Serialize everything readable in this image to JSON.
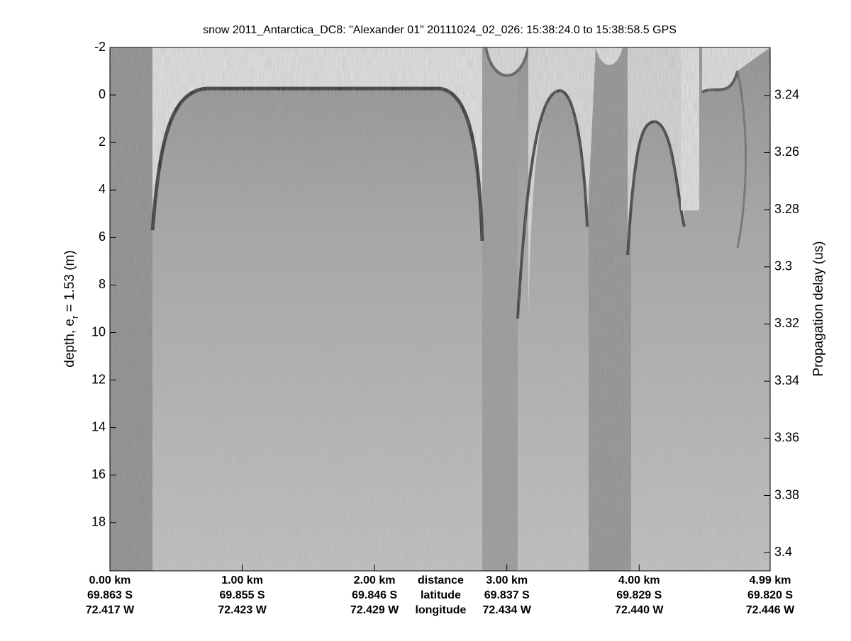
{
  "chart_data": {
    "type": "echogram",
    "title": "snow 2011_Antarctica_DC8: \"Alexander 01\"  20111024_02_026: 15:38:24.0 to 15:38:58.5 GPS",
    "ylabel": [
      "depth, e",
      "r",
      " = 1.53 (m)"
    ],
    "y2label": "Propagation delay (us)",
    "ylim": [
      -2,
      20.03
    ],
    "yticks": [
      -2,
      0,
      2,
      4,
      6,
      8,
      10,
      12,
      14,
      16,
      18
    ],
    "y2lim": [
      3.2232,
      3.4064
    ],
    "y2ticks": [
      3.24,
      3.26,
      3.28,
      3.3,
      3.32,
      3.34,
      3.36,
      3.38,
      3.4
    ],
    "xlim": [
      0,
      4.99
    ],
    "xticks": [
      {
        "value": 0,
        "label": "0.00 km"
      },
      {
        "value": 1,
        "label": "1.00 km"
      },
      {
        "value": 2,
        "label": "2.00 km"
      },
      {
        "value": 3,
        "label": "3.00 km"
      },
      {
        "value": 4,
        "label": "4.00 km"
      },
      {
        "value": 4.99,
        "label": "4.99 km"
      }
    ],
    "latitude": [
      "69.863 S",
      "69.855 S",
      "69.846 S",
      "69.837 S",
      "69.829 S",
      "69.820 S"
    ],
    "longitude": [
      "72.417 W",
      "72.423 W",
      "72.429 W",
      "72.434 W",
      "72.440 W",
      "72.446 W"
    ],
    "x_row_labels": [
      "distance",
      "latitude",
      "longitude"
    ],
    "x_row_labels_at": 2.5
  }
}
